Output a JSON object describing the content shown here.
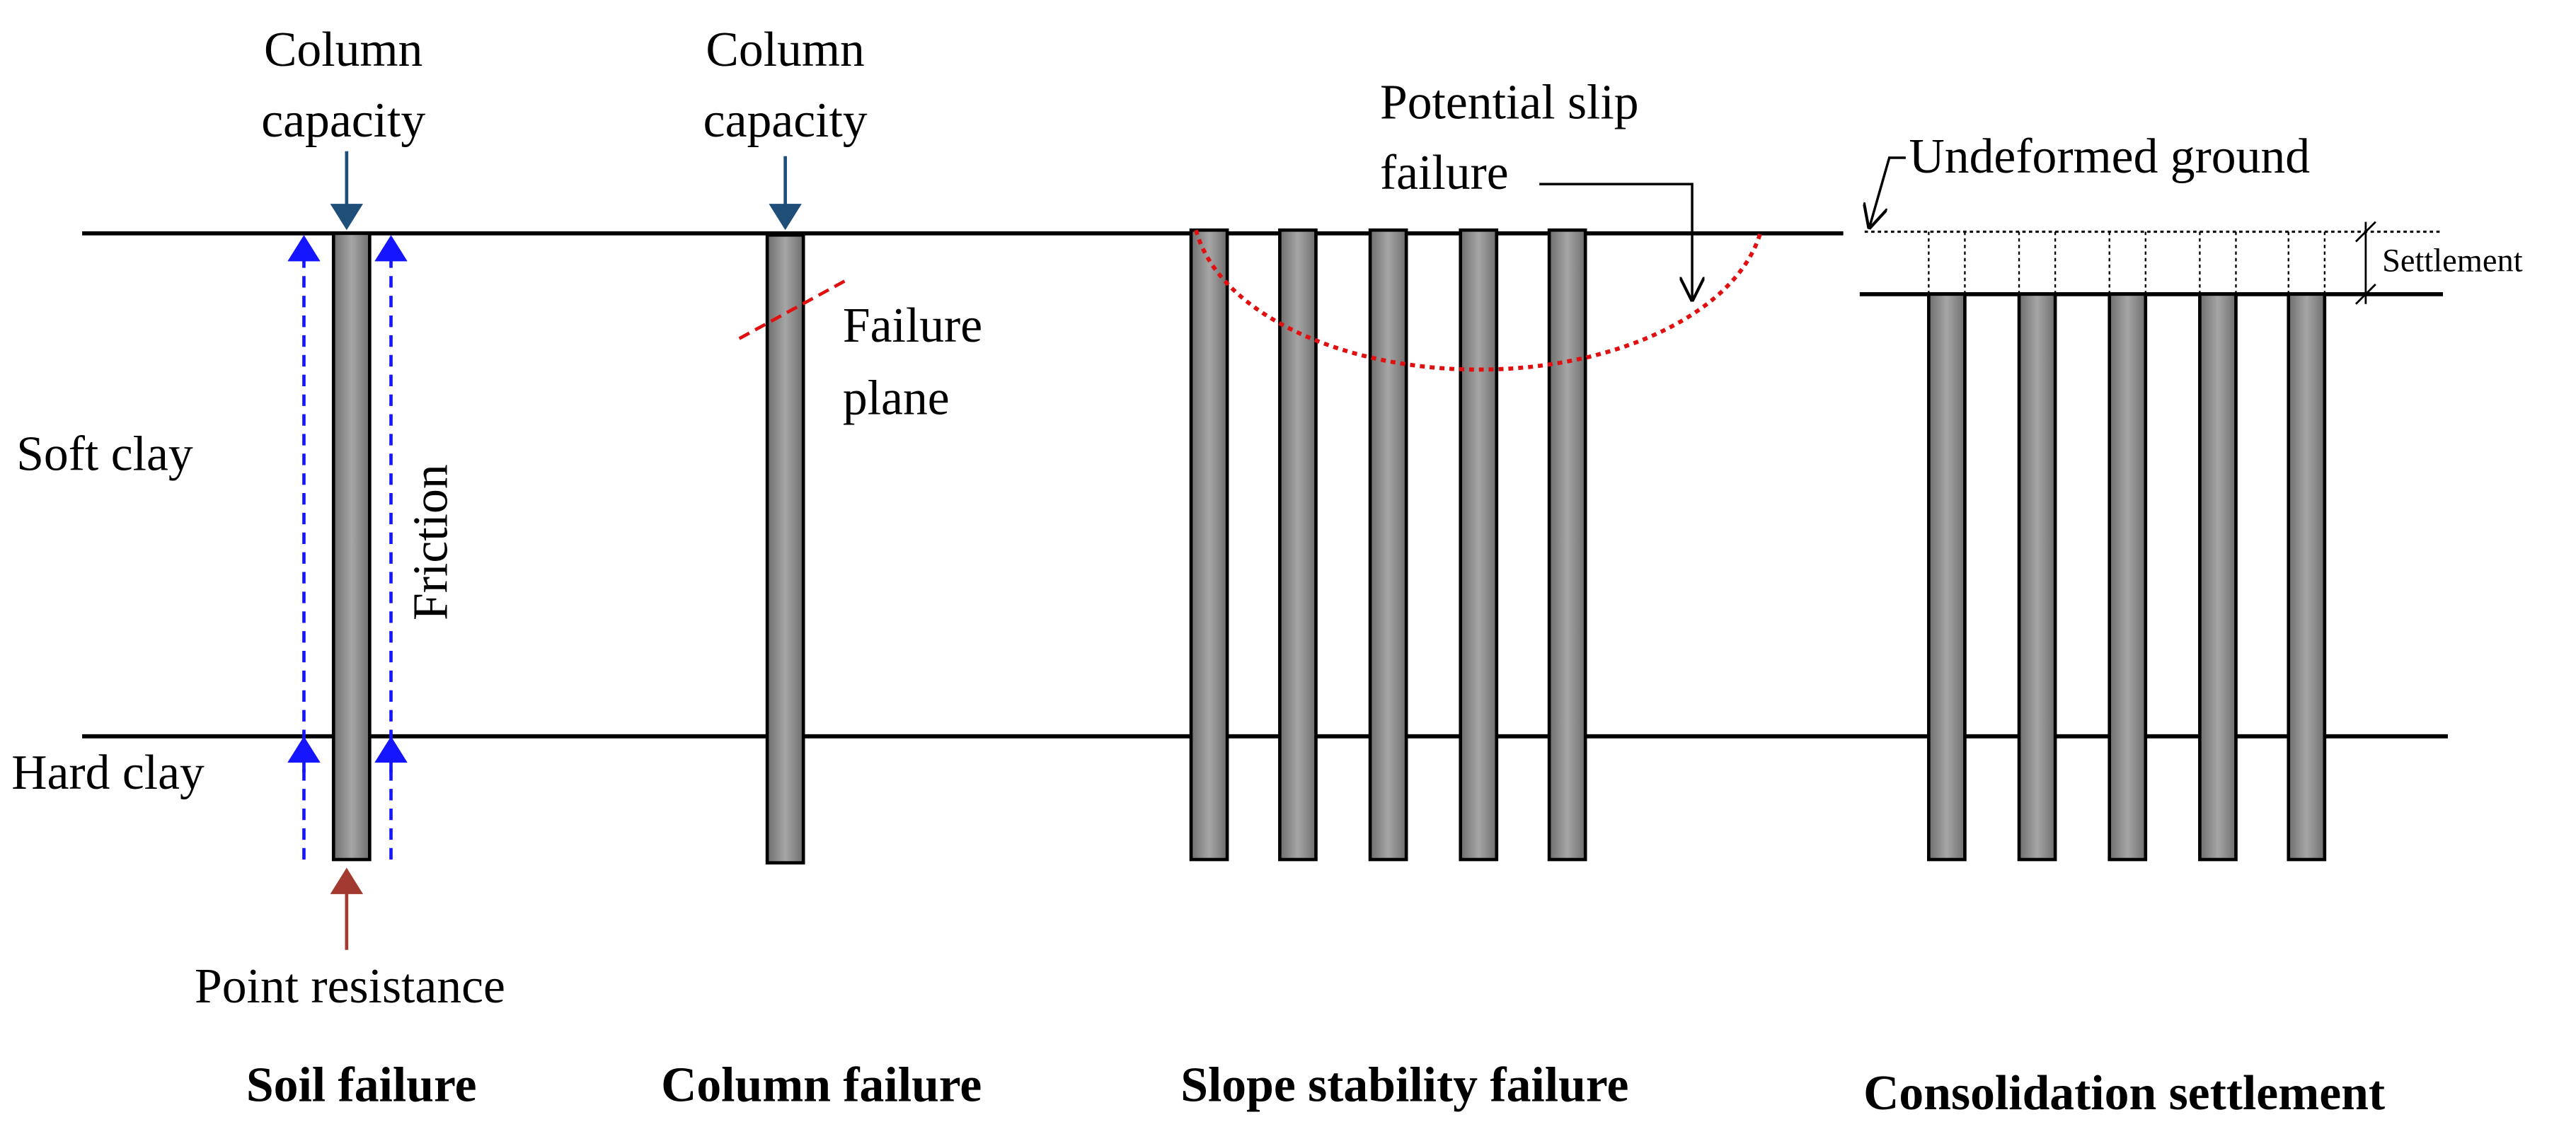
{
  "layers": [
    "Soft clay",
    "Hard clay"
  ],
  "soil_failure": {
    "title": "Soil failure",
    "load": [
      "Column",
      "capacity"
    ],
    "friction": "Friction",
    "base": "Point resistance"
  },
  "column_failure": {
    "title": "Column failure",
    "load": [
      "Column",
      "capacity"
    ],
    "plane": [
      "Failure",
      "plane"
    ]
  },
  "slope_failure": {
    "title": "Slope stability failure",
    "slip": [
      "Potential slip",
      "failure"
    ]
  },
  "settlement": {
    "title": "Consolidation settlement",
    "ground": "Undeformed ground",
    "settlement": "Settlement"
  }
}
